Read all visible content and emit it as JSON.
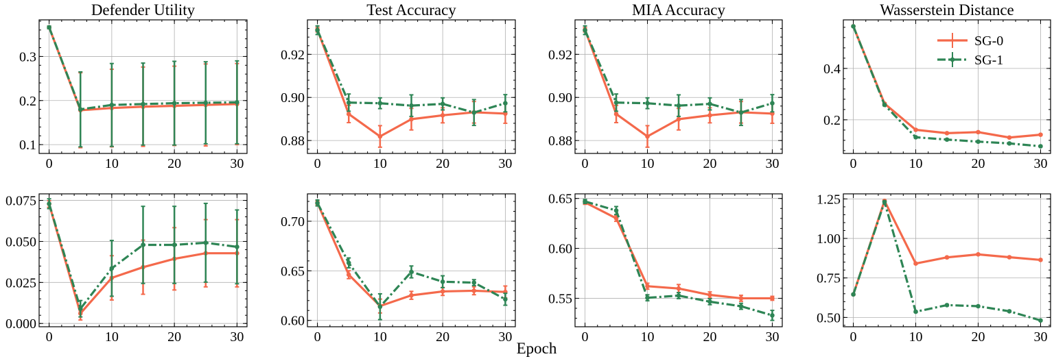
{
  "figure": {
    "xlabel": "Epoch"
  },
  "series_style": [
    {
      "name": "SG-0",
      "color": "#f4694b",
      "line": "solid"
    },
    {
      "name": "SG-1",
      "color": "#2e8555",
      "line": "dashdot"
    }
  ],
  "legend": {
    "placement": "top-right",
    "panel": 3,
    "entries": [
      "SG-0",
      "SG-1"
    ]
  },
  "chart_data": [
    {
      "type": "line",
      "title": "Defender Utility",
      "x": [
        0,
        5,
        10,
        15,
        20,
        25,
        30
      ],
      "xticks": [
        "0",
        "10",
        "20",
        "30"
      ],
      "xlim": [
        -1.6,
        31.6
      ],
      "ylim": [
        0.08,
        0.383
      ],
      "yticks": [
        0.1,
        0.2,
        0.3
      ],
      "ytick_labels": [
        "0.1",
        "0.2",
        "0.3"
      ],
      "grid": true,
      "series": [
        {
          "name": "SG-0",
          "values": [
            0.366,
            0.178,
            0.183,
            0.186,
            0.188,
            0.19,
            0.192
          ],
          "errors": [
            0.003,
            0.085,
            0.088,
            0.09,
            0.09,
            0.093,
            0.092
          ]
        },
        {
          "name": "SG-1",
          "values": [
            0.366,
            0.18,
            0.19,
            0.192,
            0.194,
            0.195,
            0.196
          ],
          "errors": [
            0.003,
            0.085,
            0.094,
            0.093,
            0.095,
            0.093,
            0.094
          ]
        }
      ]
    },
    {
      "type": "line",
      "title": "Test Accuracy",
      "x": [
        0,
        5,
        10,
        15,
        20,
        25,
        30
      ],
      "xticks": [
        "0",
        "10",
        "20",
        "30"
      ],
      "xlim": [
        -1.6,
        31.6
      ],
      "ylim": [
        0.874,
        0.936
      ],
      "yticks": [
        0.88,
        0.9,
        0.92
      ],
      "ytick_labels": [
        "0.88",
        "0.90",
        "0.92"
      ],
      "grid": true,
      "series": [
        {
          "name": "SG-0",
          "values": [
            0.9314,
            0.8923,
            0.8819,
            0.8899,
            0.8917,
            0.8931,
            0.8925
          ],
          "errors": [
            0.001,
            0.004,
            0.005,
            0.005,
            0.0035,
            0.005,
            0.0045
          ]
        },
        {
          "name": "SG-1",
          "values": [
            0.9312,
            0.8976,
            0.8973,
            0.8962,
            0.897,
            0.893,
            0.8973
          ],
          "errors": [
            0.002,
            0.004,
            0.0025,
            0.005,
            0.0028,
            0.006,
            0.004
          ]
        }
      ]
    },
    {
      "type": "line",
      "title": "MIA Accuracy",
      "x": [
        0,
        5,
        10,
        15,
        20,
        25,
        30
      ],
      "xticks": [
        "0",
        "10",
        "20",
        "30"
      ],
      "xlim": [
        -1.6,
        31.6
      ],
      "ylim": [
        0.874,
        0.936
      ],
      "yticks": [
        0.88,
        0.9,
        0.92
      ],
      "ytick_labels": [
        "0.88",
        "0.90",
        "0.92"
      ],
      "grid": true,
      "series": [
        {
          "name": "SG-0",
          "values": [
            0.9314,
            0.8923,
            0.8819,
            0.8899,
            0.8917,
            0.8931,
            0.8925
          ],
          "errors": [
            0.001,
            0.004,
            0.005,
            0.005,
            0.0035,
            0.005,
            0.0045
          ]
        },
        {
          "name": "SG-1",
          "values": [
            0.9312,
            0.8976,
            0.8973,
            0.8962,
            0.897,
            0.893,
            0.8973
          ],
          "errors": [
            0.002,
            0.004,
            0.0025,
            0.005,
            0.0028,
            0.006,
            0.004
          ]
        }
      ]
    },
    {
      "type": "line",
      "title": "Wasserstein Distance",
      "x": [
        0,
        5,
        10,
        15,
        20,
        25,
        30
      ],
      "xticks": [
        "0",
        "10",
        "20",
        "30"
      ],
      "xlim": [
        -1.6,
        31.6
      ],
      "ylim": [
        0.069,
        0.589
      ],
      "yticks": [
        0.2,
        0.4
      ],
      "ytick_labels": [
        "0.2",
        "0.4"
      ],
      "grid": true,
      "series": [
        {
          "name": "SG-0",
          "values": [
            0.564,
            0.263,
            0.161,
            0.148,
            0.152,
            0.131,
            0.142
          ],
          "errors": [
            0.002,
            0.003,
            0.002,
            0.002,
            0.002,
            0.002,
            0.002
          ]
        },
        {
          "name": "SG-1",
          "values": [
            0.564,
            0.258,
            0.132,
            0.123,
            0.115,
            0.108,
            0.097
          ],
          "errors": [
            0.002,
            0.003,
            0.002,
            0.002,
            0.002,
            0.002,
            0.002
          ]
        }
      ]
    },
    {
      "type": "line",
      "title": "",
      "x": [
        0,
        5,
        10,
        15,
        20,
        25,
        30
      ],
      "xticks": [
        "0",
        "10",
        "20",
        "30"
      ],
      "xlim": [
        -1.6,
        31.6
      ],
      "ylim": [
        -0.002,
        0.079
      ],
      "yticks": [
        0,
        0.025,
        0.05,
        0.075
      ],
      "ytick_labels": [
        "0.000",
        "0.025",
        "0.050",
        "0.075"
      ],
      "grid": true,
      "series": [
        {
          "name": "SG-0",
          "values": [
            0.0728,
            0.0061,
            0.0278,
            0.0343,
            0.0394,
            0.0428,
            0.0428
          ],
          "errors": [
            0.002,
            0.004,
            0.0135,
            0.0165,
            0.019,
            0.0205,
            0.0205
          ]
        },
        {
          "name": "SG-1",
          "values": [
            0.073,
            0.009,
            0.0336,
            0.0479,
            0.0479,
            0.0492,
            0.0467
          ],
          "errors": [
            0.003,
            0.005,
            0.017,
            0.0235,
            0.0235,
            0.024,
            0.0225
          ]
        }
      ]
    },
    {
      "type": "line",
      "title": "",
      "x": [
        0,
        5,
        10,
        15,
        20,
        25,
        30
      ],
      "xticks": [
        "0",
        "10",
        "20",
        "30"
      ],
      "xlim": [
        -1.6,
        31.6
      ],
      "ylim": [
        0.5936,
        0.7276
      ],
      "yticks": [
        0.6,
        0.65,
        0.7
      ],
      "ytick_labels": [
        "0.60",
        "0.65",
        "0.70"
      ],
      "grid": true,
      "series": [
        {
          "name": "SG-0",
          "values": [
            0.7184,
            0.6461,
            0.6145,
            0.6253,
            0.6292,
            0.6299,
            0.6287
          ],
          "errors": [
            0.002,
            0.004,
            0.007,
            0.004,
            0.004,
            0.004,
            0.006
          ]
        },
        {
          "name": "SG-1",
          "values": [
            0.7184,
            0.658,
            0.6138,
            0.6489,
            0.639,
            0.6381,
            0.6213
          ],
          "errors": [
            0.003,
            0.005,
            0.013,
            0.006,
            0.006,
            0.003,
            0.006
          ]
        }
      ]
    },
    {
      "type": "line",
      "title": "",
      "x": [
        0,
        5,
        10,
        15,
        20,
        25,
        30
      ],
      "xticks": [
        "0",
        "10",
        "20",
        "30"
      ],
      "xlim": [
        -1.6,
        31.6
      ],
      "ylim": [
        0.5215,
        0.6546
      ],
      "yticks": [
        0.55,
        0.6,
        0.65
      ],
      "ytick_labels": [
        "0.55",
        "0.60",
        "0.65"
      ],
      "grid": true,
      "series": [
        {
          "name": "SG-0",
          "values": [
            0.6461,
            0.6301,
            0.5621,
            0.5598,
            0.5534,
            0.55,
            0.55
          ],
          "errors": [
            0.002,
            0.003,
            0.003,
            0.004,
            0.003,
            0.003,
            0.002
          ]
        },
        {
          "name": "SG-1",
          "values": [
            0.647,
            0.6379,
            0.5505,
            0.5527,
            0.5466,
            0.542,
            0.5329
          ],
          "errors": [
            0.002,
            0.004,
            0.003,
            0.003,
            0.003,
            0.003,
            0.005
          ]
        }
      ]
    },
    {
      "type": "line",
      "title": "",
      "x": [
        0,
        5,
        10,
        15,
        20,
        25,
        30
      ],
      "xticks": [
        "0",
        "10",
        "20",
        "30"
      ],
      "xlim": [
        -1.6,
        31.6
      ],
      "ylim": [
        0.441,
        1.282
      ],
      "yticks": [
        0.5,
        0.75,
        1.0,
        1.25
      ],
      "ytick_labels": [
        "0.50",
        "0.75",
        "1.00",
        "1.25"
      ],
      "grid": true,
      "series": [
        {
          "name": "SG-0",
          "values": [
            0.6457,
            1.238,
            0.841,
            0.88,
            0.899,
            0.881,
            0.864
          ],
          "errors": [
            0.004,
            0.005,
            0.004,
            0.004,
            0.004,
            0.004,
            0.004
          ]
        },
        {
          "name": "SG-1",
          "values": [
            0.6457,
            1.231,
            0.536,
            0.578,
            0.571,
            0.539,
            0.481
          ],
          "errors": [
            0.004,
            0.005,
            0.004,
            0.004,
            0.004,
            0.004,
            0.004
          ]
        }
      ]
    }
  ]
}
